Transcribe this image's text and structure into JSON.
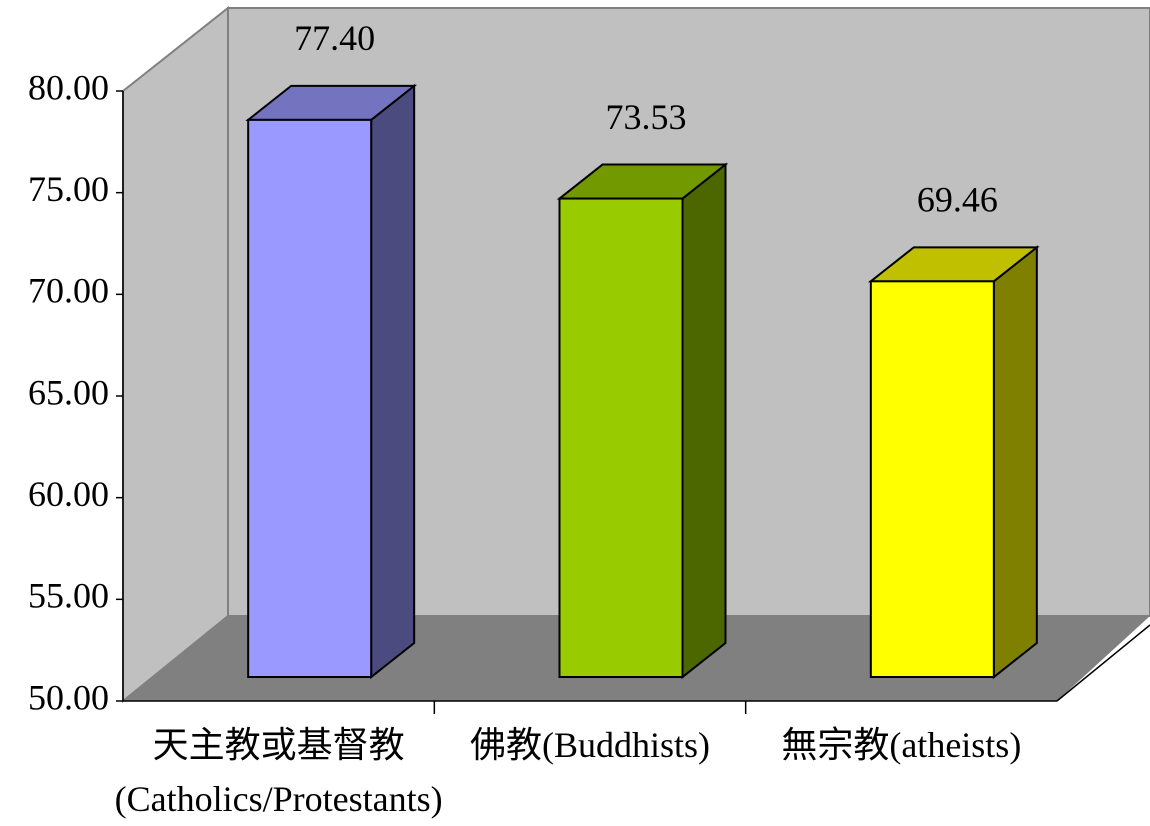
{
  "chart_data": {
    "type": "bar3d",
    "categories": [
      "天主教或基督教 (Catholics/Protestants)",
      "佛教(Buddhists)",
      "無宗教(atheists)"
    ],
    "values": [
      77.4,
      73.53,
      69.46
    ],
    "value_labels": [
      "77.40",
      "73.53",
      "69.46"
    ],
    "colors": [
      "#9999ff",
      "#99cc00",
      "#ffff00"
    ],
    "top_colors": [
      "#7373c0",
      "#739900",
      "#c0c000"
    ],
    "side_colors": [
      "#4b4b80",
      "#4c6600",
      "#808000"
    ],
    "ylim": [
      50,
      80
    ],
    "yticks": [
      {
        "value": 50,
        "label": "50.00"
      },
      {
        "value": 55,
        "label": "55.00"
      },
      {
        "value": 60,
        "label": "60.00"
      },
      {
        "value": 65,
        "label": "65.00"
      },
      {
        "value": 70,
        "label": "70.00"
      },
      {
        "value": 75,
        "label": "75.00"
      },
      {
        "value": 80,
        "label": "80.00"
      }
    ]
  }
}
